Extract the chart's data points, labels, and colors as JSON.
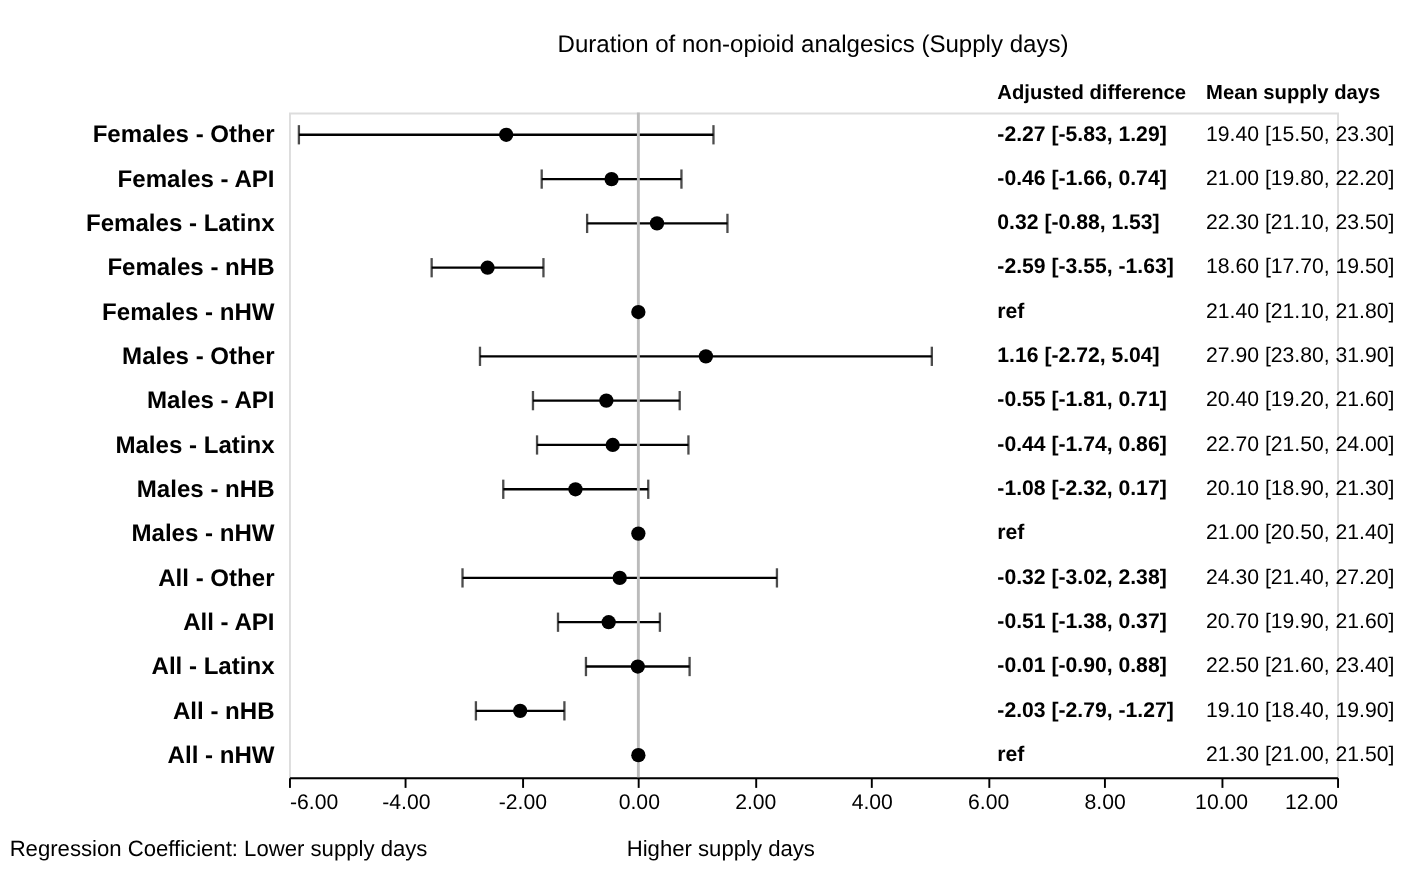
{
  "chart_data": {
    "type": "scatter",
    "orientation": "horizontal",
    "title": "Duration of non-opioid analgesics (Supply days)",
    "categories": [
      "Females - Other",
      "Females - API",
      "Females - Latinx",
      "Females - nHB",
      "Females - nHW",
      "Males - Other",
      "Males - API",
      "Males - Latinx",
      "Males - nHB",
      "Males - nHW",
      "All - Other",
      "All - API",
      "All - Latinx",
      "All - nHB",
      "All - nHW"
    ],
    "series": [
      {
        "color": "#000000",
        "values": [
          -2.27,
          -0.46,
          0.32,
          -2.59,
          0,
          1.16,
          -0.55,
          -0.44,
          -1.08,
          0,
          -0.32,
          -0.51,
          -0.01,
          -2.03,
          0
        ],
        "errors": [
          [
            -5.83,
            1.29
          ],
          [
            -1.66,
            0.74
          ],
          [
            -0.88,
            1.53
          ],
          [
            -3.55,
            -1.63
          ],
          null,
          [
            -2.72,
            5.04
          ],
          [
            -1.81,
            0.71
          ],
          [
            -1.74,
            0.86
          ],
          [
            -2.32,
            0.17
          ],
          null,
          [
            -3.02,
            2.38
          ],
          [
            -1.38,
            0.37
          ],
          [
            -0.9,
            0.88
          ],
          [
            -2.79,
            -1.27
          ],
          null
        ]
      }
    ],
    "xlim": [
      -6,
      12
    ],
    "xticks": [
      {
        "value": -6,
        "label": "-6.00"
      },
      {
        "value": -4,
        "label": "-4.00"
      },
      {
        "value": -2,
        "label": "-2.00"
      },
      {
        "value": 0,
        "label": "0.00"
      },
      {
        "value": 2,
        "label": "2.00"
      },
      {
        "value": 4,
        "label": "4.00"
      },
      {
        "value": 6,
        "label": "6.00"
      },
      {
        "value": 8,
        "label": "8.00"
      },
      {
        "value": 10,
        "label": "10.00"
      },
      {
        "value": 12,
        "label": "12.00"
      }
    ],
    "ref_lines": [
      {
        "axis": "x",
        "value": 0,
        "color": "#bbbbbb"
      }
    ],
    "marker": "circle",
    "grid": false,
    "annotations": [
      "Adjusted difference",
      "Mean supply days",
      "Regression Coefficient: Lower supply days",
      "Higher supply days",
      "-2.27 [-5.83, 1.29]",
      "-0.46 [-1.66, 0.74]",
      "0.32 [-0.88, 1.53]",
      "-2.59 [-3.55, -1.63]",
      "ref",
      "1.16 [-2.72, 5.04]",
      "-0.55 [-1.81, 0.71]",
      "-0.44 [-1.74, 0.86]",
      "-1.08 [-2.32, 0.17]",
      "ref",
      "-0.32 [-3.02, 2.38]",
      "-0.51 [-1.38, 0.37]",
      "-0.01 [-0.90, 0.88]",
      "-2.03 [-2.79, -1.27]",
      "ref",
      "19.40 [15.50, 23.30]",
      "21.00 [19.80, 22.20]",
      "22.30 [21.10, 23.50]",
      "18.60 [17.70, 19.50]",
      "21.40 [21.10, 21.80]",
      "27.90 [23.80, 31.90]",
      "20.40 [19.20, 21.60]",
      "22.70 [21.50, 24.00]",
      "20.10 [18.90, 21.30]",
      "21.00 [20.50, 21.40]",
      "24.30 [21.40, 27.20]",
      "20.70 [19.90, 21.60]",
      "22.50 [21.60, 23.40]",
      "19.10 [18.40, 19.90]",
      "21.30 [21.00, 21.50]"
    ]
  }
}
